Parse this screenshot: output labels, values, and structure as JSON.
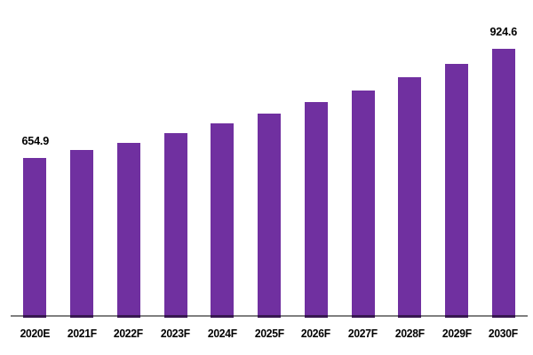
{
  "chart_data": {
    "type": "bar",
    "title": "",
    "xlabel": "",
    "ylabel": "",
    "grid": false,
    "legend_position": "none",
    "background_color": "#FFFFFF",
    "bar_color": "#7030A0",
    "bar_axis_overlap_color": "#371750",
    "axis_line_color": "#7F7F7F",
    "data_label_color": "#000000",
    "tick_label_color": "#000000",
    "categories": [
      "2020E",
      "2021F",
      "2022F",
      "2023F",
      "2024F",
      "2025F",
      "2026F",
      "2027F",
      "2028F",
      "2029F",
      "2030F"
    ],
    "values": [
      654.9,
      673.5,
      692.2,
      716.3,
      740.4,
      764.5,
      793.0,
      821.5,
      854.4,
      887.3,
      924.6
    ],
    "values_estimated_flags": [
      false,
      true,
      true,
      true,
      true,
      true,
      true,
      true,
      true,
      true,
      false
    ],
    "data_labels": [
      "654.9",
      "",
      "",
      "",
      "",
      "",
      "",
      "",
      "",
      "",
      "924.6"
    ],
    "first_label": "654.9",
    "last_label": "924.6"
  }
}
